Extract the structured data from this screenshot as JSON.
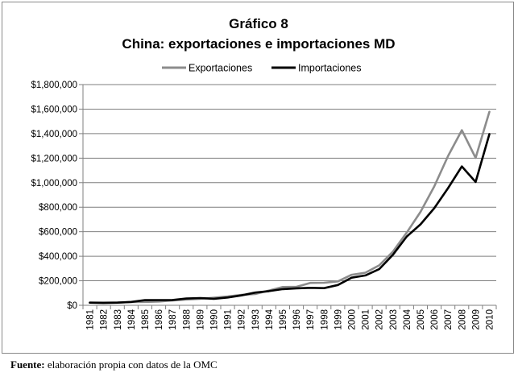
{
  "colors": {
    "exportaciones": "#8c8c8c",
    "importaciones": "#000000",
    "grid": "#7f7f7f",
    "axis": "#7f7f7f"
  },
  "chart_data": {
    "type": "line",
    "title": "Gráfico 8",
    "subtitle": "China: exportaciones e importaciones MD",
    "xlabel": "",
    "ylabel": "",
    "ylim": [
      0,
      1800000
    ],
    "ytick_step": 200000,
    "yticks": [
      "$0",
      "$200,000",
      "$400,000",
      "$600,000",
      "$800,000",
      "$1,000,000",
      "$1,200,000",
      "$1,400,000",
      "$1,600,000",
      "$1,800,000"
    ],
    "grid": true,
    "legend_position": "top-center",
    "categories": [
      "1981",
      "1982",
      "1983",
      "1984",
      "1985",
      "1986",
      "1987",
      "1988",
      "1989",
      "1990",
      "1991",
      "1992",
      "1993",
      "1994",
      "1995",
      "1996",
      "1997",
      "1998",
      "1999",
      "2000",
      "2001",
      "2002",
      "2003",
      "2004",
      "2005",
      "2006",
      "2007",
      "2008",
      "2009",
      "2010"
    ],
    "series": [
      {
        "name": "Exportaciones",
        "values": [
          22000,
          22300,
          22200,
          26100,
          27400,
          30900,
          39400,
          47500,
          52500,
          62100,
          71900,
          84900,
          91700,
          121000,
          148800,
          151000,
          182800,
          183800,
          194900,
          249200,
          266100,
          325600,
          438200,
          593300,
          762000,
          969000,
          1218000,
          1428000,
          1202000,
          1578000
        ]
      },
      {
        "name": "Importaciones",
        "values": [
          22000,
          19300,
          21400,
          27400,
          42300,
          42900,
          43200,
          55300,
          59100,
          53300,
          63800,
          80600,
          104000,
          115600,
          132100,
          138800,
          142400,
          140200,
          165700,
          225100,
          243600,
          295200,
          412800,
          561200,
          660000,
          791500,
          956100,
          1132600,
          1005900,
          1396000
        ]
      }
    ]
  },
  "source": {
    "label": "Fuente:",
    "text": " elaboración propia con datos de la OMC"
  }
}
